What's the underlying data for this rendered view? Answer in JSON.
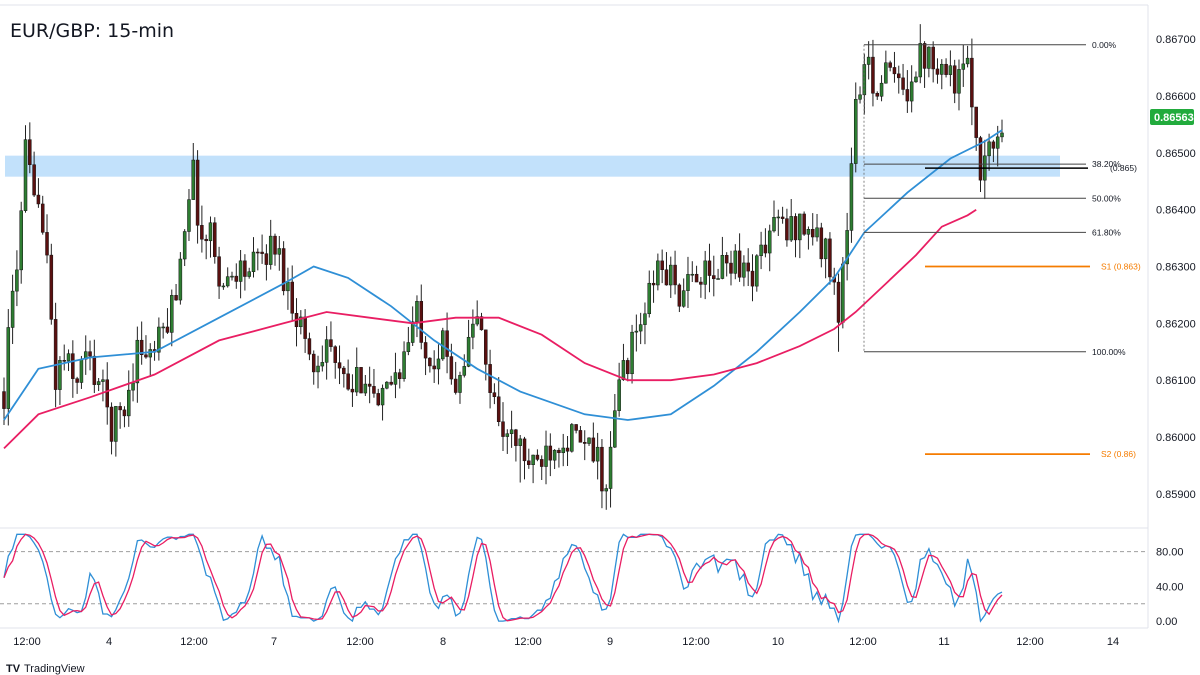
{
  "window": {
    "title": "EUR/GBP: 15-min"
  },
  "branding": {
    "logo_label": "TradingView"
  },
  "current_price": {
    "label": "0.86563",
    "value": 0.86563,
    "color": "#22ab3d"
  },
  "chart_data": [
    {
      "type": "candlestick",
      "title": "EUR/GBP: 15-min",
      "ylim": [
        0.8584,
        0.8676
      ],
      "y_ticks": [
        {
          "value": 0.867,
          "label": "0.86700"
        },
        {
          "value": 0.866,
          "label": "0.86600"
        },
        {
          "value": 0.865,
          "label": "0.86500"
        },
        {
          "value": 0.864,
          "label": "0.86400"
        },
        {
          "value": 0.863,
          "label": "0.86300"
        },
        {
          "value": 0.862,
          "label": "0.86200"
        },
        {
          "value": 0.861,
          "label": "0.86100"
        },
        {
          "value": 0.86,
          "label": "0.86000"
        },
        {
          "value": 0.859,
          "label": "0.85900"
        }
      ],
      "x_ticks": [
        "12:00",
        "4",
        "12:00",
        "7",
        "12:00",
        "8",
        "12:00",
        "9",
        "12:00",
        "10",
        "12:00",
        "11",
        "12:00",
        "14"
      ],
      "price_path": [
        [
          0,
          0.8608
        ],
        [
          2,
          0.8625
        ],
        [
          4,
          0.8638
        ],
        [
          5,
          0.865
        ],
        [
          7,
          0.864
        ],
        [
          8,
          0.8644
        ],
        [
          9,
          0.8636
        ],
        [
          10,
          0.863
        ],
        [
          12,
          0.861
        ],
        [
          14,
          0.8614
        ],
        [
          16,
          0.861
        ],
        [
          19,
          0.8614
        ],
        [
          22,
          0.861
        ],
        [
          25,
          0.8602
        ],
        [
          28,
          0.8605
        ],
        [
          31,
          0.8616
        ],
        [
          34,
          0.8614
        ],
        [
          37,
          0.8618
        ],
        [
          40,
          0.8626
        ],
        [
          43,
          0.8644
        ],
        [
          44,
          0.8646
        ],
        [
          46,
          0.8634
        ],
        [
          48,
          0.8636
        ],
        [
          51,
          0.8626
        ],
        [
          54,
          0.863
        ],
        [
          57,
          0.8629
        ],
        [
          60,
          0.8632
        ],
        [
          63,
          0.8634
        ],
        [
          66,
          0.8626
        ],
        [
          69,
          0.862
        ],
        [
          72,
          0.8612
        ],
        [
          75,
          0.8618
        ],
        [
          78,
          0.861
        ],
        [
          81,
          0.8608
        ],
        [
          84,
          0.8612
        ],
        [
          87,
          0.8604
        ],
        [
          90,
          0.861
        ],
        [
          93,
          0.8614
        ],
        [
          96,
          0.8622
        ],
        [
          99,
          0.8614
        ],
        [
          102,
          0.8616
        ],
        [
          105,
          0.861
        ],
        [
          108,
          0.8616
        ],
        [
          110,
          0.8622
        ],
        [
          112,
          0.8612
        ],
        [
          114,
          0.8606
        ],
        [
          117,
          0.86
        ],
        [
          120,
          0.8598
        ],
        [
          123,
          0.8594
        ],
        [
          126,
          0.8598
        ],
        [
          129,
          0.86
        ],
        [
          132,
          0.86
        ],
        [
          135,
          0.8598
        ],
        [
          138,
          0.8596
        ],
        [
          140,
          0.859
        ],
        [
          143,
          0.861
        ],
        [
          146,
          0.8616
        ],
        [
          149,
          0.8622
        ],
        [
          152,
          0.863
        ],
        [
          155,
          0.8628
        ],
        [
          158,
          0.8624
        ],
        [
          161,
          0.863
        ],
        [
          164,
          0.8627
        ],
        [
          167,
          0.863
        ],
        [
          170,
          0.8632
        ],
        [
          173,
          0.8628
        ],
        [
          176,
          0.8632
        ],
        [
          179,
          0.8638
        ],
        [
          182,
          0.8636
        ],
        [
          185,
          0.8638
        ],
        [
          188,
          0.8636
        ],
        [
          191,
          0.8632
        ],
        [
          193,
          0.863
        ],
        [
          194,
          0.862
        ],
        [
          196,
          0.8638
        ],
        [
          198,
          0.8658
        ],
        [
          200,
          0.8665
        ],
        [
          203,
          0.8662
        ],
        [
          206,
          0.8664
        ],
        [
          209,
          0.866
        ],
        [
          212,
          0.8666
        ],
        [
          215,
          0.8668
        ],
        [
          218,
          0.8666
        ],
        [
          221,
          0.8663
        ],
        [
          224,
          0.8664
        ],
        [
          226,
          0.8654
        ],
        [
          227,
          0.8648
        ],
        [
          229,
          0.865
        ],
        [
          231,
          0.8653
        ],
        [
          232,
          0.8656
        ]
      ],
      "fixed_highs": {
        "5": 0.865,
        "44": 0.8648,
        "215": 0.8668,
        "24": 0.8601
      },
      "fixed_lows": {
        "140": 0.8589,
        "194": 0.8615,
        "227": 0.8646,
        "120": 0.8592
      },
      "ema_short": {
        "color": "#2f8fd6",
        "points": [
          [
            0,
            0.8603
          ],
          [
            8,
            0.8612
          ],
          [
            20,
            0.8614
          ],
          [
            35,
            0.8615
          ],
          [
            50,
            0.8621
          ],
          [
            65,
            0.8627
          ],
          [
            72,
            0.863
          ],
          [
            80,
            0.8628
          ],
          [
            90,
            0.8623
          ],
          [
            100,
            0.8617
          ],
          [
            110,
            0.8612
          ],
          [
            120,
            0.8608
          ],
          [
            135,
            0.8604
          ],
          [
            145,
            0.8603
          ],
          [
            155,
            0.8604
          ],
          [
            165,
            0.8609
          ],
          [
            175,
            0.8615
          ],
          [
            185,
            0.8622
          ],
          [
            193,
            0.8628
          ],
          [
            200,
            0.8636
          ],
          [
            210,
            0.8643
          ],
          [
            220,
            0.8649
          ],
          [
            228,
            0.8652
          ],
          [
            232,
            0.8654
          ]
        ]
      },
      "ema_long": {
        "color": "#e91e63",
        "points": [
          [
            0,
            0.8598
          ],
          [
            8,
            0.8604
          ],
          [
            20,
            0.8607
          ],
          [
            35,
            0.8611
          ],
          [
            50,
            0.8617
          ],
          [
            65,
            0.862
          ],
          [
            75,
            0.8622
          ],
          [
            85,
            0.8621
          ],
          [
            95,
            0.862
          ],
          [
            105,
            0.8621
          ],
          [
            115,
            0.8621
          ],
          [
            125,
            0.8618
          ],
          [
            135,
            0.8613
          ],
          [
            145,
            0.861
          ],
          [
            155,
            0.861
          ],
          [
            165,
            0.8611
          ],
          [
            175,
            0.8613
          ],
          [
            185,
            0.8616
          ],
          [
            193,
            0.8619
          ],
          [
            198,
            0.8622
          ],
          [
            205,
            0.8627
          ],
          [
            212,
            0.8632
          ],
          [
            218,
            0.8637
          ],
          [
            224,
            0.8639
          ],
          [
            226,
            0.864
          ]
        ]
      },
      "resistance_zone": {
        "from": 0.86458,
        "to": 0.86495,
        "color": "#bbdefb"
      },
      "fibonacci": [
        {
          "label": "0.00%",
          "value": 0.8669
        },
        {
          "label": "38.20%",
          "value": 0.8648
        },
        {
          "label": "50.00%",
          "value": 0.8642
        },
        {
          "label": "61.80%",
          "value": 0.8636
        },
        {
          "label": "100.00%",
          "value": 0.8615
        }
      ],
      "levels": [
        {
          "label": "S1 (0.863)",
          "value": 0.863,
          "color": "#f57c00"
        },
        {
          "label": "S2 (0.86)",
          "value": 0.8597,
          "color": "#f57c00"
        }
      ],
      "annotations": [
        {
          "label": "(0.865)",
          "value": 0.8648
        }
      ]
    },
    {
      "type": "line",
      "title": "",
      "ylim": [
        -8,
        105
      ],
      "y_ticks": [
        {
          "value": 80,
          "label": "80.00"
        },
        {
          "value": 40,
          "label": "40.00"
        },
        {
          "value": 0,
          "label": "0.00"
        }
      ],
      "bands": [
        80,
        20
      ],
      "series": [
        {
          "color": "#2f8fd6"
        },
        {
          "color": "#e91e63"
        }
      ]
    }
  ]
}
